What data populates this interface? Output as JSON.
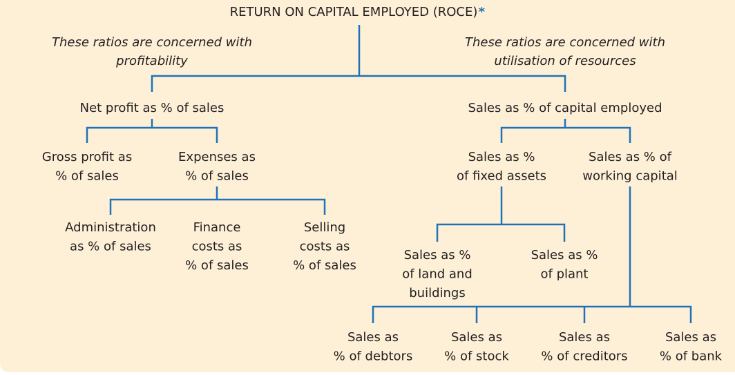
{
  "title": "RETURN ON CAPITAL EMPLOYED (ROCE)",
  "title_marker": "*",
  "notes": [
    {
      "lines": [
        "These ratios are concerned with",
        "profitability"
      ]
    },
    {
      "lines": [
        "These ratios are concerned with",
        "utilisation of resources"
      ]
    }
  ],
  "nodes": [
    {
      "lines": [
        "Net profit as % of sales"
      ]
    },
    {
      "lines": [
        "Sales as % of capital employed"
      ]
    },
    {
      "lines": [
        "Gross profit as",
        "% of sales"
      ]
    },
    {
      "lines": [
        "Expenses as",
        "% of sales"
      ]
    },
    {
      "lines": [
        "Sales as %",
        "of fixed assets"
      ]
    },
    {
      "lines": [
        "Sales as % of",
        "working capital"
      ]
    },
    {
      "lines": [
        "Administration",
        "as % of sales"
      ]
    },
    {
      "lines": [
        "Finance",
        "costs as",
        "% of sales"
      ]
    },
    {
      "lines": [
        "Selling",
        "costs as",
        "% of sales"
      ]
    },
    {
      "lines": [
        "Sales as %",
        "of land and",
        "buildings"
      ]
    },
    {
      "lines": [
        "Sales as %",
        "of plant"
      ]
    },
    {
      "lines": [
        "Sales as",
        "% of debtors"
      ]
    },
    {
      "lines": [
        "Sales as",
        "% of stock"
      ]
    },
    {
      "lines": [
        "Sales as",
        "% of creditors"
      ]
    },
    {
      "lines": [
        "Sales as",
        "% of bank"
      ]
    }
  ]
}
